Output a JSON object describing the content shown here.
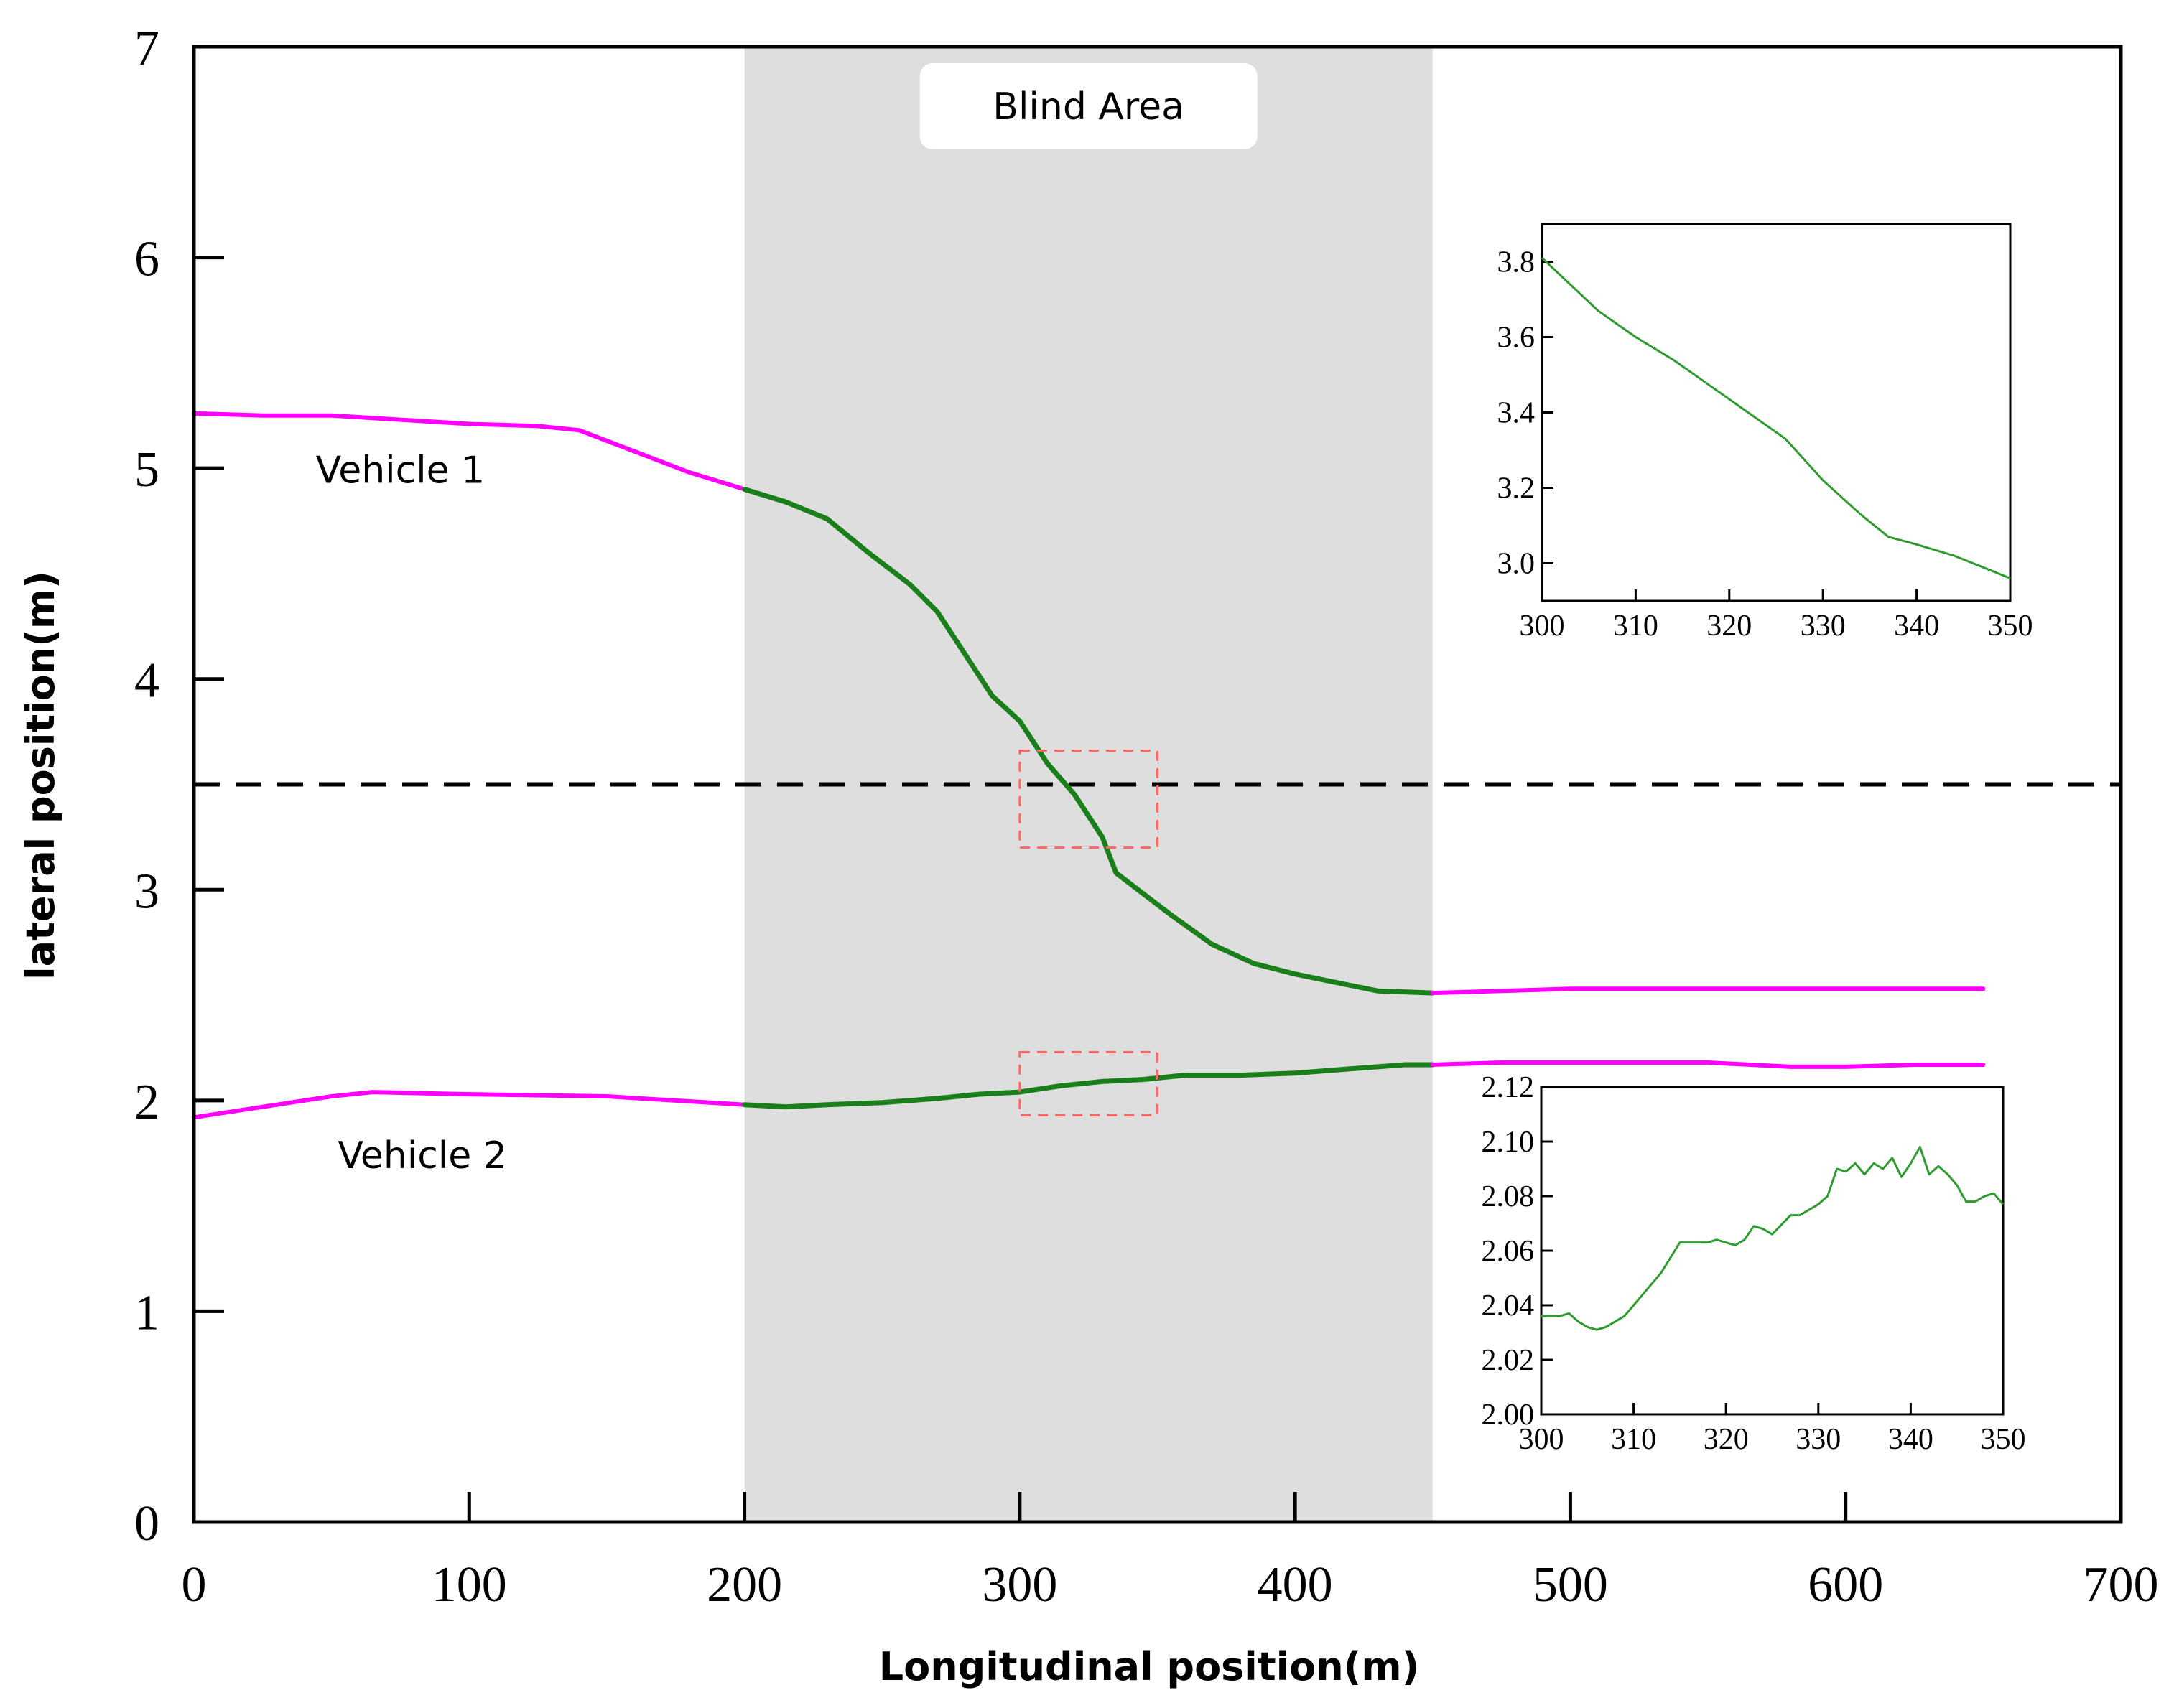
{
  "chart_data": {
    "type": "line",
    "xlabel": "Longitudinal position(m)",
    "ylabel": "lateral position(m)",
    "xlim": [
      0,
      700
    ],
    "ylim": [
      0,
      7
    ],
    "x_ticks": [
      0,
      100,
      200,
      300,
      400,
      500,
      600,
      700
    ],
    "y_ticks": [
      0,
      1,
      2,
      3,
      4,
      5,
      6,
      7
    ],
    "x_tick_labels": [
      "0",
      "100",
      "200",
      "300",
      "400",
      "500",
      "600",
      "700"
    ],
    "y_tick_labels": [
      "0",
      "1",
      "2",
      "3",
      "4",
      "5",
      "6",
      "7"
    ],
    "blind_area": {
      "label": "Blind Area",
      "x_range": [
        200,
        450
      ]
    },
    "lane_line": {
      "y": 3.5
    },
    "zoom_boxes": [
      {
        "x_range": [
          300,
          350
        ],
        "y_range": [
          3.2,
          3.66
        ]
      },
      {
        "x_range": [
          300,
          350
        ],
        "y_range": [
          1.93,
          2.23
        ]
      }
    ],
    "annotations": [
      {
        "text": "Vehicle 1",
        "x": 75,
        "y": 4.93
      },
      {
        "text": "Vehicle 2",
        "x": 83,
        "y": 1.68
      }
    ],
    "colors": {
      "outside_blind": "#ff00ff",
      "inside_blind": "#1a7f1a",
      "blind_fill": "#dedede",
      "zoom_box": "#ff6666",
      "lane_line": "#000000"
    },
    "series": [
      {
        "name": "Vehicle 1",
        "x": [
          0,
          25,
          50,
          75,
          100,
          125,
          140,
          160,
          180,
          200,
          215,
          230,
          245,
          260,
          270,
          280,
          290,
          300,
          310,
          320,
          330,
          335,
          345,
          355,
          370,
          385,
          400,
          415,
          430,
          450,
          475,
          500,
          550,
          600,
          650
        ],
        "y": [
          5.26,
          5.25,
          5.25,
          5.23,
          5.21,
          5.2,
          5.18,
          5.08,
          4.98,
          4.9,
          4.84,
          4.76,
          4.6,
          4.45,
          4.32,
          4.12,
          3.92,
          3.8,
          3.6,
          3.45,
          3.25,
          3.08,
          2.98,
          2.88,
          2.74,
          2.65,
          2.6,
          2.56,
          2.52,
          2.51,
          2.52,
          2.53,
          2.53,
          2.53,
          2.53
        ]
      },
      {
        "name": "Vehicle 2",
        "x": [
          0,
          25,
          50,
          65,
          100,
          150,
          175,
          200,
          215,
          230,
          250,
          270,
          285,
          300,
          315,
          330,
          345,
          360,
          380,
          400,
          420,
          440,
          450,
          475,
          500,
          550,
          580,
          600,
          625,
          650
        ],
        "y": [
          1.92,
          1.97,
          2.02,
          2.04,
          2.03,
          2.02,
          2.0,
          1.98,
          1.97,
          1.98,
          1.99,
          2.01,
          2.03,
          2.04,
          2.07,
          2.09,
          2.1,
          2.12,
          2.12,
          2.13,
          2.15,
          2.17,
          2.17,
          2.18,
          2.18,
          2.18,
          2.16,
          2.16,
          2.17,
          2.17
        ]
      }
    ],
    "insets": [
      {
        "xlim": [
          300,
          350
        ],
        "ylim": [
          2.9,
          3.9
        ],
        "x_ticks": [
          300,
          310,
          320,
          330,
          340,
          350
        ],
        "y_ticks": [
          3.0,
          3.2,
          3.4,
          3.6,
          3.8
        ],
        "x_tick_labels": [
          "300",
          "310",
          "320",
          "330",
          "340",
          "350"
        ],
        "y_tick_labels": [
          "3.0",
          "3.2",
          "3.4",
          "3.6",
          "3.8"
        ],
        "x": [
          300,
          303,
          306,
          310,
          314,
          318,
          322,
          326,
          330,
          334,
          337,
          340,
          344,
          347,
          350
        ],
        "y": [
          3.81,
          3.74,
          3.67,
          3.6,
          3.54,
          3.47,
          3.4,
          3.33,
          3.22,
          3.13,
          3.07,
          3.05,
          3.02,
          2.99,
          2.96
        ]
      },
      {
        "xlim": [
          300,
          350
        ],
        "ylim": [
          2.0,
          2.12
        ],
        "x_ticks": [
          300,
          310,
          320,
          330,
          340,
          350
        ],
        "y_ticks": [
          2.0,
          2.02,
          2.04,
          2.06,
          2.08,
          2.1,
          2.12
        ],
        "x_tick_labels": [
          "300",
          "310",
          "320",
          "330",
          "340",
          "350"
        ],
        "y_tick_labels": [
          "2.00",
          "2.02",
          "2.04",
          "2.06",
          "2.08",
          "2.10",
          "2.12"
        ],
        "x": [
          300,
          302,
          303,
          304,
          305,
          306,
          307,
          309,
          311,
          313,
          315,
          316,
          318,
          319,
          321,
          322,
          323,
          324,
          325,
          327,
          328,
          330,
          331,
          332,
          333,
          334,
          335,
          336,
          337,
          338,
          339,
          340,
          341,
          342,
          343,
          344,
          345,
          346,
          347,
          348,
          349,
          350
        ],
        "y": [
          2.036,
          2.036,
          2.037,
          2.034,
          2.032,
          2.031,
          2.032,
          2.036,
          2.044,
          2.052,
          2.063,
          2.063,
          2.063,
          2.064,
          2.062,
          2.064,
          2.069,
          2.068,
          2.066,
          2.073,
          2.073,
          2.077,
          2.08,
          2.09,
          2.089,
          2.092,
          2.088,
          2.092,
          2.09,
          2.094,
          2.087,
          2.092,
          2.098,
          2.088,
          2.091,
          2.088,
          2.084,
          2.078,
          2.078,
          2.08,
          2.081,
          2.077
        ]
      }
    ]
  }
}
